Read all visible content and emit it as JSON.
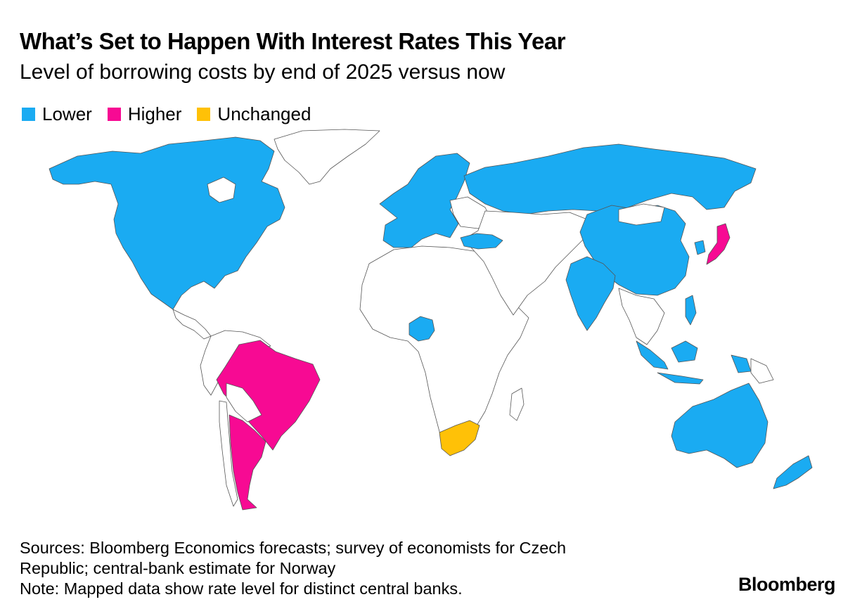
{
  "header": {
    "title": "What’s Set to Happen With Interest Rates This Year",
    "subtitle": "Level of borrowing costs by end of 2025 versus now"
  },
  "legend": [
    {
      "label": "Lower",
      "color": "#1aabf2"
    },
    {
      "label": "Higher",
      "color": "#f70a93"
    },
    {
      "label": "Unchanged",
      "color": "#ffc107"
    }
  ],
  "map_data": {
    "type": "choropleth",
    "colors": {
      "lower": "#1aabf2",
      "higher": "#f70a93",
      "unchanged": "#ffc107",
      "no_data": "#ffffff"
    },
    "regions": [
      {
        "name": "North America (US, Canada, Mexico)",
        "category": "lower"
      },
      {
        "name": "Brazil",
        "category": "higher"
      },
      {
        "name": "Argentina",
        "category": "higher"
      },
      {
        "name": "Europe",
        "category": "lower"
      },
      {
        "name": "Russia",
        "category": "lower"
      },
      {
        "name": "Turkey",
        "category": "lower"
      },
      {
        "name": "Nigeria",
        "category": "lower"
      },
      {
        "name": "South Africa",
        "category": "unchanged"
      },
      {
        "name": "China",
        "category": "lower"
      },
      {
        "name": "India",
        "category": "lower"
      },
      {
        "name": "Japan",
        "category": "higher"
      },
      {
        "name": "South Korea",
        "category": "lower"
      },
      {
        "name": "Indonesia",
        "category": "lower"
      },
      {
        "name": "Philippines",
        "category": "lower"
      },
      {
        "name": "Australia",
        "category": "lower"
      },
      {
        "name": "New Zealand",
        "category": "lower"
      }
    ]
  },
  "footer": {
    "sources": "Sources: Bloomberg Economics forecasts; survey of economists for Czech\nRepublic; central-bank estimate for Norway\nNote: Mapped data show rate level for distinct central banks.",
    "brand": "Bloomberg"
  }
}
